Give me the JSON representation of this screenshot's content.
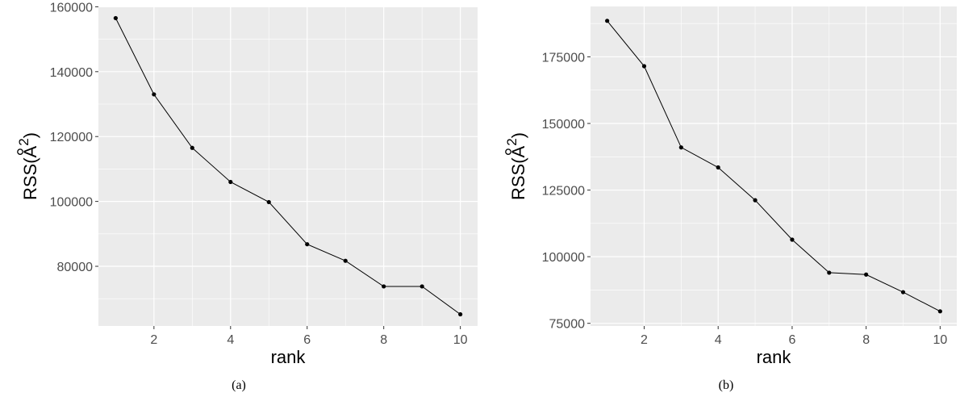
{
  "chart_data": [
    {
      "type": "line",
      "caption": "(a)",
      "xlabel": "rank",
      "ylabel": "RSS(Å²)",
      "ylabel_base": "RSS(",
      "ylabel_unit": "A",
      "ylabel_exp": "2",
      "ylabel_close": ")",
      "x": [
        1,
        2,
        3,
        4,
        5,
        6,
        7,
        8,
        9,
        10
      ],
      "y": [
        156500,
        133000,
        116500,
        106000,
        99800,
        86800,
        81700,
        73800,
        73800,
        65200
      ],
      "xticks": [
        2,
        4,
        6,
        8,
        10
      ],
      "yticks": [
        80000,
        100000,
        120000,
        140000,
        160000
      ],
      "xticklabels": [
        "2",
        "4",
        "6",
        "8",
        "10"
      ],
      "yticklabels": [
        "80000",
        "100000",
        "120000",
        "140000",
        "160000"
      ],
      "xlim": [
        0.55,
        10.45
      ],
      "ylim": [
        61600,
        160100
      ],
      "grid": true,
      "colors": {
        "panel": "#ebebeb",
        "grid": "#ffffff",
        "line": "#000000",
        "tick_text": "#4d4d4d"
      }
    },
    {
      "type": "line",
      "caption": "(b)",
      "xlabel": "rank",
      "ylabel": "RSS(Å²)",
      "ylabel_base": "RSS(",
      "ylabel_unit": "A",
      "ylabel_exp": "2",
      "ylabel_close": ")",
      "x": [
        1,
        2,
        3,
        4,
        5,
        6,
        7,
        8,
        9,
        10
      ],
      "y": [
        188500,
        171500,
        141000,
        133500,
        121200,
        106400,
        94000,
        93300,
        86700,
        79500
      ],
      "xticks": [
        2,
        4,
        6,
        8,
        10
      ],
      "yticks": [
        75000,
        100000,
        125000,
        150000,
        175000
      ],
      "xticklabels": [
        "2",
        "4",
        "6",
        "8",
        "10"
      ],
      "yticklabels": [
        "75000",
        "100000",
        "125000",
        "150000",
        "175000"
      ],
      "xlim": [
        0.55,
        10.45
      ],
      "ylim": [
        74000,
        193900
      ],
      "grid": true,
      "colors": {
        "panel": "#ebebeb",
        "grid": "#ffffff",
        "line": "#000000",
        "tick_text": "#4d4d4d"
      }
    }
  ]
}
